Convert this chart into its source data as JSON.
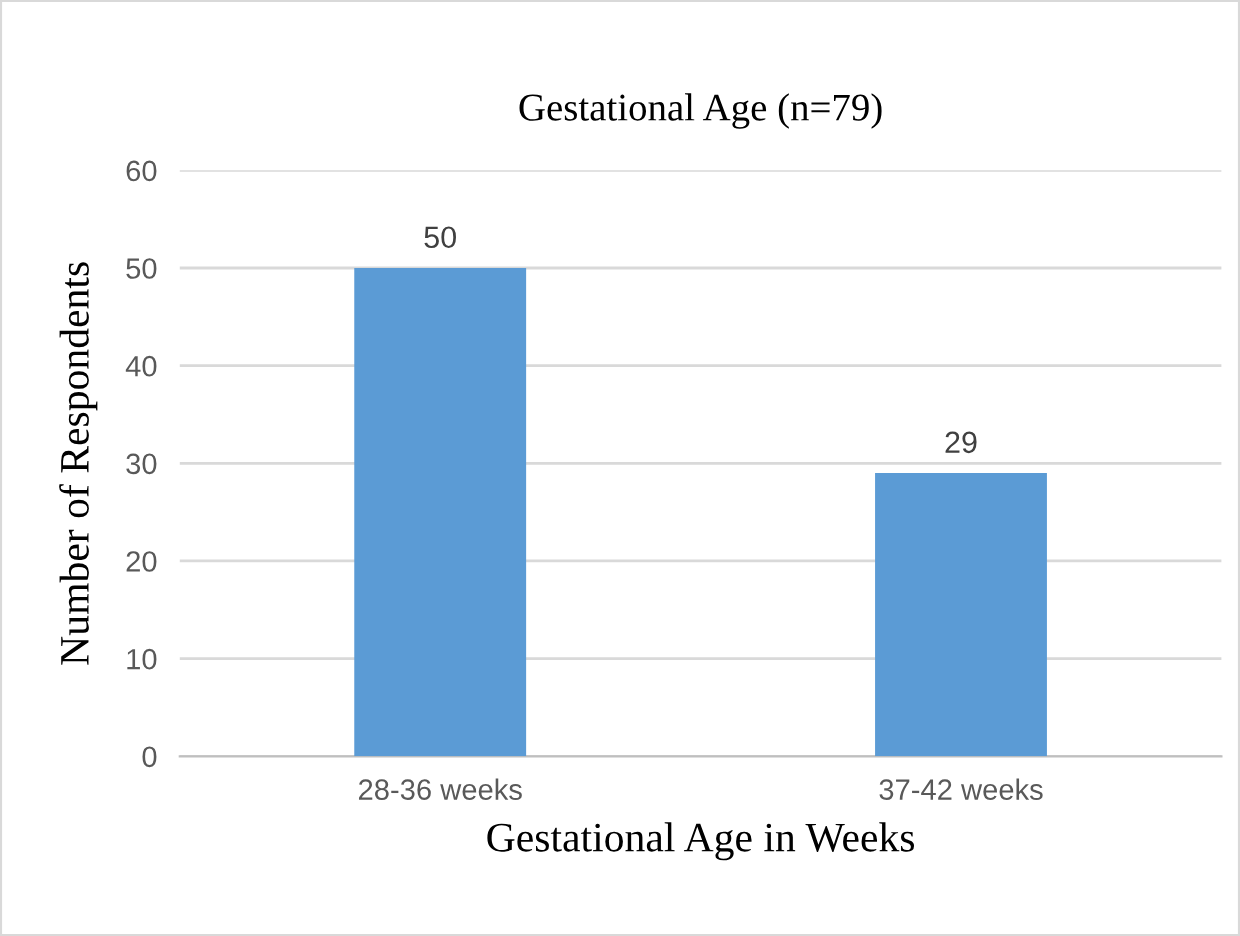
{
  "chart_data": {
    "type": "bar",
    "title": "Gestational Age (n=79)",
    "xlabel": "Gestational Age in Weeks",
    "ylabel": "Number of Respondents",
    "categories": [
      "28-36 weeks",
      "37-42 weeks"
    ],
    "values": [
      50,
      29
    ],
    "color": "#5b9bd5",
    "ylim": [
      0,
      60
    ],
    "yticks": [
      0,
      10,
      20,
      30,
      40,
      50,
      60
    ],
    "grid": "y",
    "data_labels": true
  }
}
